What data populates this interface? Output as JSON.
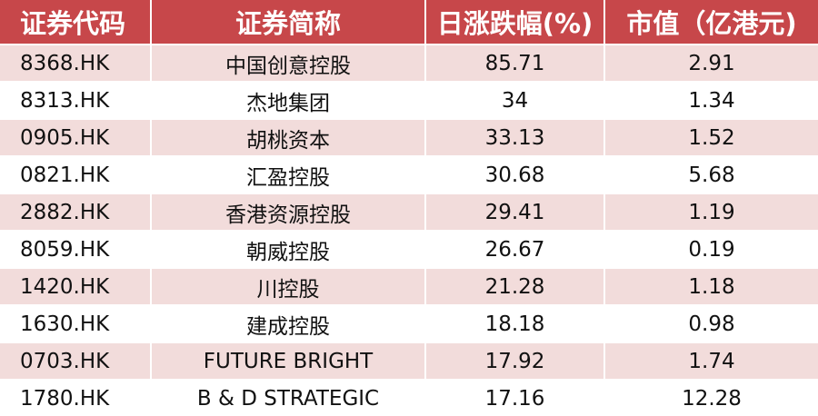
{
  "table": {
    "header": [
      "证券代码",
      "证券简称",
      "日涨跌幅(%)",
      "市值（亿港元)"
    ],
    "rows": [
      [
        "8368.HK",
        "中国创意控股",
        "85.71",
        "2.91"
      ],
      [
        "8313.HK",
        "杰地集团",
        "34",
        "1.34"
      ],
      [
        "0905.HK",
        "胡桃资本",
        "33.13",
        "1.52"
      ],
      [
        "0821.HK",
        "汇盈控股",
        "30.68",
        "5.68"
      ],
      [
        "2882.HK",
        "香港资源控股",
        "29.41",
        "1.19"
      ],
      [
        "8059.HK",
        "朝威控股",
        "26.67",
        "0.19"
      ],
      [
        "1420.HK",
        "川控股",
        "21.28",
        "1.18"
      ],
      [
        "1630.HK",
        "建成控股",
        "18.18",
        "0.98"
      ],
      [
        "0703.HK",
        "FUTURE BRIGHT",
        "17.92",
        "1.74"
      ],
      [
        "1780.HK",
        "B & D STRATEGIC",
        "17.16",
        "12.28"
      ]
    ]
  }
}
